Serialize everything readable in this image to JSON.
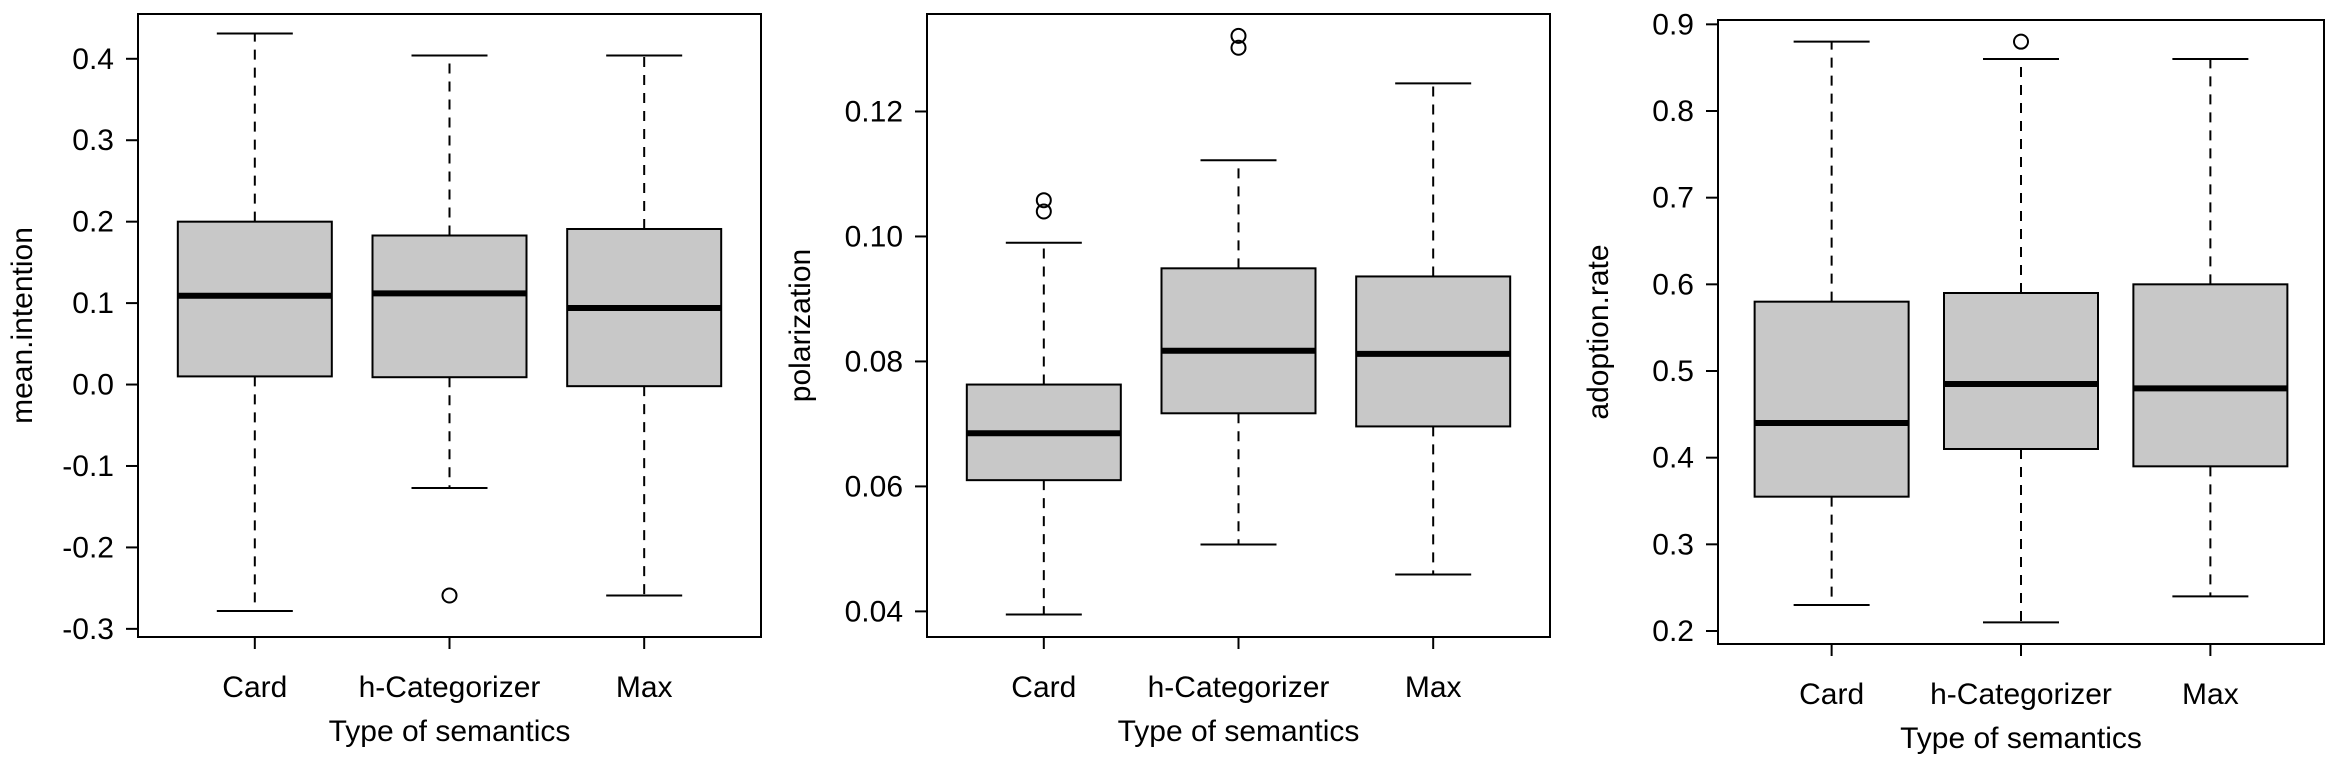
{
  "chart_data": [
    {
      "type": "box",
      "xlabel": "Type of semantics",
      "ylabel": "mean.intention",
      "ylim": [
        -0.31,
        0.455
      ],
      "yticks": [
        -0.3,
        -0.2,
        -0.1,
        0.0,
        0.1,
        0.2,
        0.3,
        0.4
      ],
      "ytick_labels": [
        "-0.3",
        "-0.2",
        "-0.1",
        "0.0",
        "0.1",
        "0.2",
        "0.3",
        "0.4"
      ],
      "categories": [
        "Card",
        "h-Categorizer",
        "Max"
      ],
      "boxes": [
        {
          "whisker_low": -0.278,
          "q1": 0.01,
          "median": 0.109,
          "q3": 0.2,
          "whisker_high": 0.431,
          "outliers": []
        },
        {
          "whisker_low": -0.127,
          "q1": 0.009,
          "median": 0.112,
          "q3": 0.183,
          "whisker_high": 0.404,
          "outliers": [
            -0.259
          ]
        },
        {
          "whisker_low": -0.259,
          "q1": -0.002,
          "median": 0.094,
          "q3": 0.191,
          "whisker_high": 0.404,
          "outliers": []
        }
      ],
      "grid": false
    },
    {
      "type": "box",
      "xlabel": "Type of semantics",
      "ylabel": "polarization",
      "ylim": [
        0.0359,
        0.1356
      ],
      "yticks": [
        0.04,
        0.06,
        0.08,
        0.1,
        0.12
      ],
      "ytick_labels": [
        "0.04",
        "0.06",
        "0.08",
        "0.10",
        "0.12"
      ],
      "categories": [
        "Card",
        "h-Categorizer",
        "Max"
      ],
      "boxes": [
        {
          "whisker_low": 0.0395,
          "q1": 0.061,
          "median": 0.0685,
          "q3": 0.0763,
          "whisker_high": 0.099,
          "outliers": [
            0.104,
            0.1058
          ]
        },
        {
          "whisker_low": 0.0507,
          "q1": 0.0717,
          "median": 0.0817,
          "q3": 0.0949,
          "whisker_high": 0.1122,
          "outliers": [
            0.1302,
            0.1321
          ]
        },
        {
          "whisker_low": 0.0459,
          "q1": 0.0696,
          "median": 0.0812,
          "q3": 0.0936,
          "whisker_high": 0.1245,
          "outliers": []
        }
      ],
      "grid": false
    },
    {
      "type": "box",
      "xlabel": "Type of semantics",
      "ylabel": "adoption.rate",
      "ylim": [
        0.185,
        0.905
      ],
      "yticks": [
        0.2,
        0.3,
        0.4,
        0.5,
        0.6,
        0.7,
        0.8,
        0.9
      ],
      "ytick_labels": [
        "0.2",
        "0.3",
        "0.4",
        "0.5",
        "0.6",
        "0.7",
        "0.8",
        "0.9"
      ],
      "categories": [
        "Card",
        "h-Categorizer",
        "Max"
      ],
      "boxes": [
        {
          "whisker_low": 0.23,
          "q1": 0.355,
          "median": 0.44,
          "q3": 0.58,
          "whisker_high": 0.88,
          "outliers": []
        },
        {
          "whisker_low": 0.21,
          "q1": 0.41,
          "median": 0.485,
          "q3": 0.59,
          "whisker_high": 0.86,
          "outliers": [
            0.88
          ]
        },
        {
          "whisker_low": 0.24,
          "q1": 0.39,
          "median": 0.48,
          "q3": 0.6,
          "whisker_high": 0.86,
          "outliers": []
        }
      ],
      "grid": false
    }
  ],
  "colors": {
    "box_fill": "#c8c8c8",
    "stroke": "#000000",
    "background": "#ffffff"
  }
}
